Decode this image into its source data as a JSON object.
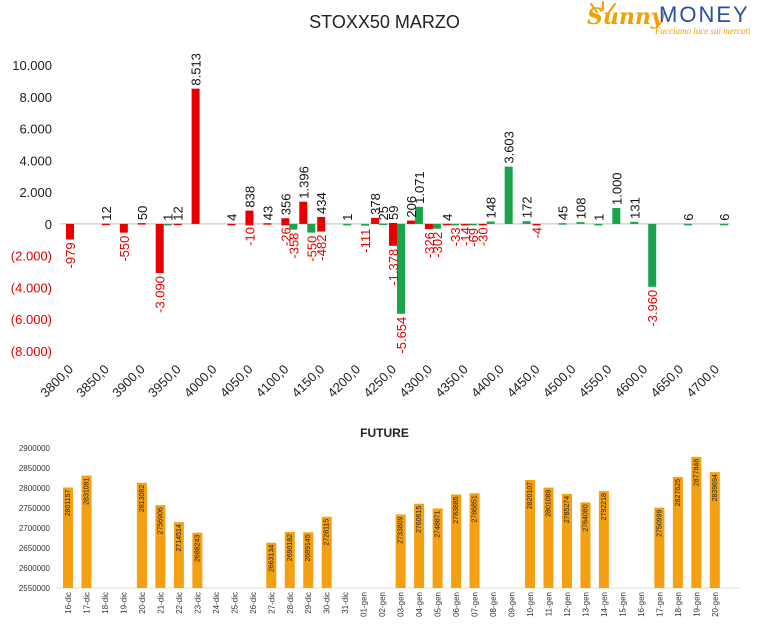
{
  "header": {
    "title": "STOXX50 MARZO",
    "logo_word1": "Sunny",
    "logo_word2": "MONEY",
    "logo_tagline": "Facciamo luce sui mercati"
  },
  "colors": {
    "green": "#1aa34a",
    "red": "#e60000",
    "orange": "#f5a012",
    "axis": "#333333"
  },
  "chart_data": [
    {
      "type": "bar",
      "title": "STOXX50 MARZO",
      "ylim": [
        -8000,
        10000
      ],
      "y_ticks": [
        "(8.000)",
        "(6.000)",
        "(4.000)",
        "(2.000)",
        "0",
        "2.000",
        "4.000",
        "6.000",
        "8.000",
        "10.000"
      ],
      "y_tick_values": [
        -8000,
        -6000,
        -4000,
        -2000,
        0,
        2000,
        4000,
        6000,
        8000,
        10000
      ],
      "x_ticks": [
        "3800,0",
        "3850,0",
        "3900,0",
        "3950,0",
        "4000,0",
        "4050,0",
        "4100,0",
        "4150,0",
        "4200,0",
        "4250,0",
        "4300,0",
        "4350,0",
        "4400,0",
        "4450,0",
        "4500,0",
        "4550,0",
        "4600,0",
        "4650,0",
        "4700,0"
      ],
      "x_tick_values": [
        3800,
        3850,
        3900,
        3950,
        4000,
        4050,
        4100,
        4150,
        4200,
        4250,
        4300,
        4350,
        4400,
        4450,
        4500,
        4550,
        4600,
        4650,
        4700
      ],
      "series": [
        {
          "color": "green",
          "points": [
            {
              "strike": 3925,
              "value": 1,
              "label": "1"
            },
            {
              "strike": 4100,
              "value": -358,
              "label": "-358"
            },
            {
              "strike": 4125,
              "value": -550,
              "label": "-550"
            },
            {
              "strike": 4175,
              "value": 1,
              "label": "1"
            },
            {
              "strike": 4200,
              "value": -111,
              "label": "-111"
            },
            {
              "strike": 4225,
              "value": 25,
              "label": "25"
            },
            {
              "strike": 4250,
              "value": -5654,
              "label": "-5.654"
            },
            {
              "strike": 4275,
              "value": 1071,
              "label": "1.071"
            },
            {
              "strike": 4300,
              "value": -302,
              "label": "-302"
            },
            {
              "strike": 4325,
              "value": -33,
              "label": "-33"
            },
            {
              "strike": 4350,
              "value": -69,
              "label": "-69"
            },
            {
              "strike": 4375,
              "value": 148,
              "label": "148"
            },
            {
              "strike": 4400,
              "value": 3603,
              "label": "3.603"
            },
            {
              "strike": 4425,
              "value": 172,
              "label": "172"
            },
            {
              "strike": 4475,
              "value": 45,
              "label": "45"
            },
            {
              "strike": 4500,
              "value": 108,
              "label": "108"
            },
            {
              "strike": 4525,
              "value": 1,
              "label": "1"
            },
            {
              "strike": 4550,
              "value": 1000,
              "label": "1.000"
            },
            {
              "strike": 4575,
              "value": 131,
              "label": "131"
            },
            {
              "strike": 4600,
              "value": -3960,
              "label": "-3.960"
            },
            {
              "strike": 4650,
              "value": 6,
              "label": "6"
            },
            {
              "strike": 4700,
              "value": 6,
              "label": "6"
            }
          ]
        },
        {
          "color": "red",
          "points": [
            {
              "strike": 3800,
              "value": -979,
              "label": "-979"
            },
            {
              "strike": 3850,
              "value": 12,
              "label": "12"
            },
            {
              "strike": 3875,
              "value": -550,
              "label": "-550"
            },
            {
              "strike": 3900,
              "value": 50,
              "label": "50"
            },
            {
              "strike": 3925,
              "value": -3090,
              "label": "-3.090"
            },
            {
              "strike": 3950,
              "value": 12,
              "label": "12"
            },
            {
              "strike": 3975,
              "value": 8513,
              "label": "8.513"
            },
            {
              "strike": 4025,
              "value": 4,
              "label": "4"
            },
            {
              "strike": 4050,
              "value": -10,
              "label": "-10"
            },
            {
              "strike": 4050,
              "value": 838,
              "label": "838"
            },
            {
              "strike": 4075,
              "value": 43,
              "label": "43"
            },
            {
              "strike": 4100,
              "value": 356,
              "label": "356"
            },
            {
              "strike": 4100,
              "value": -26,
              "label": "-26"
            },
            {
              "strike": 4125,
              "value": 1396,
              "label": "1.396"
            },
            {
              "strike": 4150,
              "value": -482,
              "label": "-482"
            },
            {
              "strike": 4150,
              "value": 434,
              "label": "434"
            },
            {
              "strike": 4225,
              "value": 378,
              "label": "378"
            },
            {
              "strike": 4250,
              "value": 59,
              "label": "59"
            },
            {
              "strike": 4250,
              "value": -1378,
              "label": "-1.378"
            },
            {
              "strike": 4275,
              "value": 206,
              "label": "206"
            },
            {
              "strike": 4300,
              "value": -326,
              "label": "-326"
            },
            {
              "strike": 4325,
              "value": 4,
              "label": "4"
            },
            {
              "strike": 4350,
              "value": -14,
              "label": "-14"
            },
            {
              "strike": 4375,
              "value": -30,
              "label": "-30"
            },
            {
              "strike": 4450,
              "value": -4,
              "label": "-4"
            }
          ]
        }
      ]
    },
    {
      "type": "bar",
      "title": "FUTURE",
      "ylim": [
        2550000,
        2900000
      ],
      "y_ticks": [
        "2550000",
        "2600000",
        "2650000",
        "2700000",
        "2750000",
        "2800000",
        "2850000",
        "2900000"
      ],
      "y_tick_values": [
        2550000,
        2600000,
        2650000,
        2700000,
        2750000,
        2800000,
        2850000,
        2900000
      ],
      "categories": [
        "16-dic",
        "17-dic",
        "18-dic",
        "19-dic",
        "20-dic",
        "21-dic",
        "22-dic",
        "23-dic",
        "24-dic",
        "25-dic",
        "26-dic",
        "27-dic",
        "28-dic",
        "29-dic",
        "30-dic",
        "31-dic",
        "01-gen",
        "02-gen",
        "03-gen",
        "04-gen",
        "05-gen",
        "06-gen",
        "07-gen",
        "08-gen",
        "09-gen",
        "10-gen",
        "11-gen",
        "12-gen",
        "13-gen",
        "14-gen",
        "15-gen",
        "16-gen",
        "17-gen",
        "18-gen",
        "19-gen",
        "20-gen"
      ],
      "values": [
        2801157,
        2831091,
        null,
        null,
        2813082,
        2756906,
        2714514,
        2688243,
        null,
        null,
        null,
        2663134,
        2690182,
        2689145,
        2728115,
        null,
        null,
        null,
        2733809,
        2760615,
        2748871,
        2783885,
        2786851,
        null,
        null,
        2820107,
        2801089,
        2785274,
        2764080,
        2792218,
        null,
        null,
        2750999,
        2827625,
        2877848,
        2839694
      ],
      "labels": [
        "2801157",
        "2831091",
        "",
        "",
        "2813082",
        "2756906",
        "2714514",
        "2688243",
        "",
        "",
        "",
        "2663134",
        "2690182",
        "2689145",
        "2728115",
        "",
        "",
        "",
        "2733809",
        "2760615",
        "2748871",
        "2783885",
        "2786851",
        "",
        "",
        "2820107",
        "2801089",
        "2785274",
        "2764080",
        "2792218",
        "",
        "",
        "2750999",
        "2827625",
        "2877848",
        "2839694"
      ]
    }
  ]
}
